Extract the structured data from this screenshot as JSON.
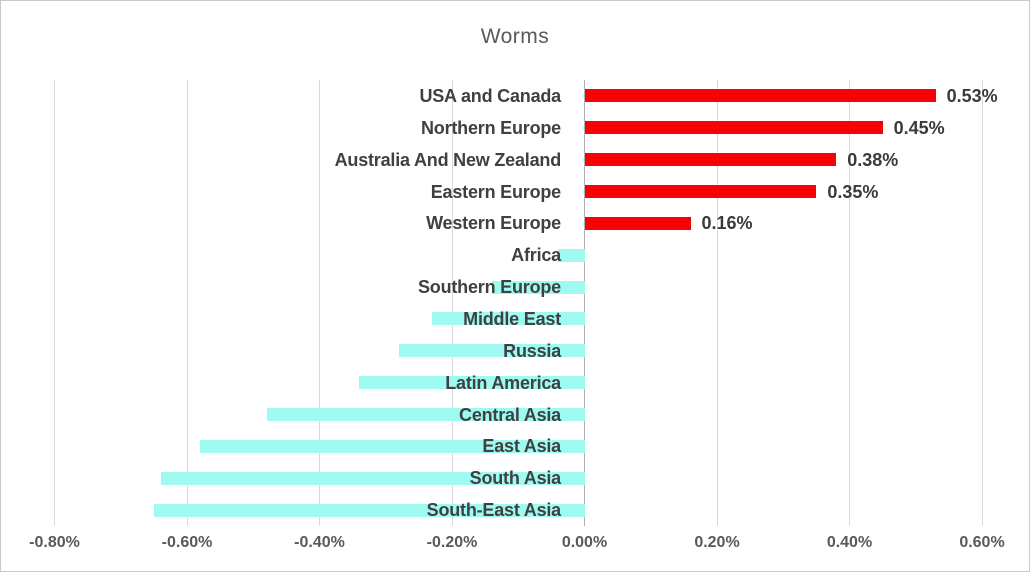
{
  "title": "Worms",
  "colors": {
    "positive_bar": "#ff0000",
    "negative_bar": "#9ffbf1",
    "gridline": "#d9d9d9",
    "zero_axis": "#b0b0b0",
    "category_label": "#404040",
    "value_label": "#3a3a3a",
    "tick_label": "#595959",
    "title_text": "#595959",
    "border": "#c9c9c9"
  },
  "chart_data": {
    "type": "bar",
    "orientation": "horizontal",
    "title": "Worms",
    "xlabel": "",
    "ylabel": "",
    "grid": "vertical-only",
    "legend": "none",
    "xlim": [
      -0.8,
      0.6
    ],
    "x_ticks": [
      -0.8,
      -0.6,
      -0.4,
      -0.2,
      0.0,
      0.2,
      0.4,
      0.6
    ],
    "x_tick_labels": [
      "-0.80%",
      "-0.60%",
      "-0.40%",
      "-0.20%",
      "0.00%",
      "0.20%",
      "0.40%",
      "0.60%"
    ],
    "categories": [
      "USA and Canada",
      "Northern Europe",
      "Australia And New Zealand",
      "Eastern Europe",
      "Western Europe",
      "Africa",
      "Southern Europe",
      "Middle East",
      "Russia",
      "Latin America",
      "Central Asia",
      "East Asia",
      "South Asia",
      "South-East Asia"
    ],
    "values": [
      0.53,
      0.45,
      0.38,
      0.35,
      0.16,
      -0.04,
      -0.14,
      -0.23,
      -0.28,
      -0.34,
      -0.48,
      -0.58,
      -0.64,
      -0.65
    ],
    "value_labels": [
      "0.53%",
      "0.45%",
      "0.38%",
      "0.35%",
      "0.16%",
      "",
      "",
      "",
      "",
      "",
      "",
      "",
      "",
      ""
    ]
  }
}
